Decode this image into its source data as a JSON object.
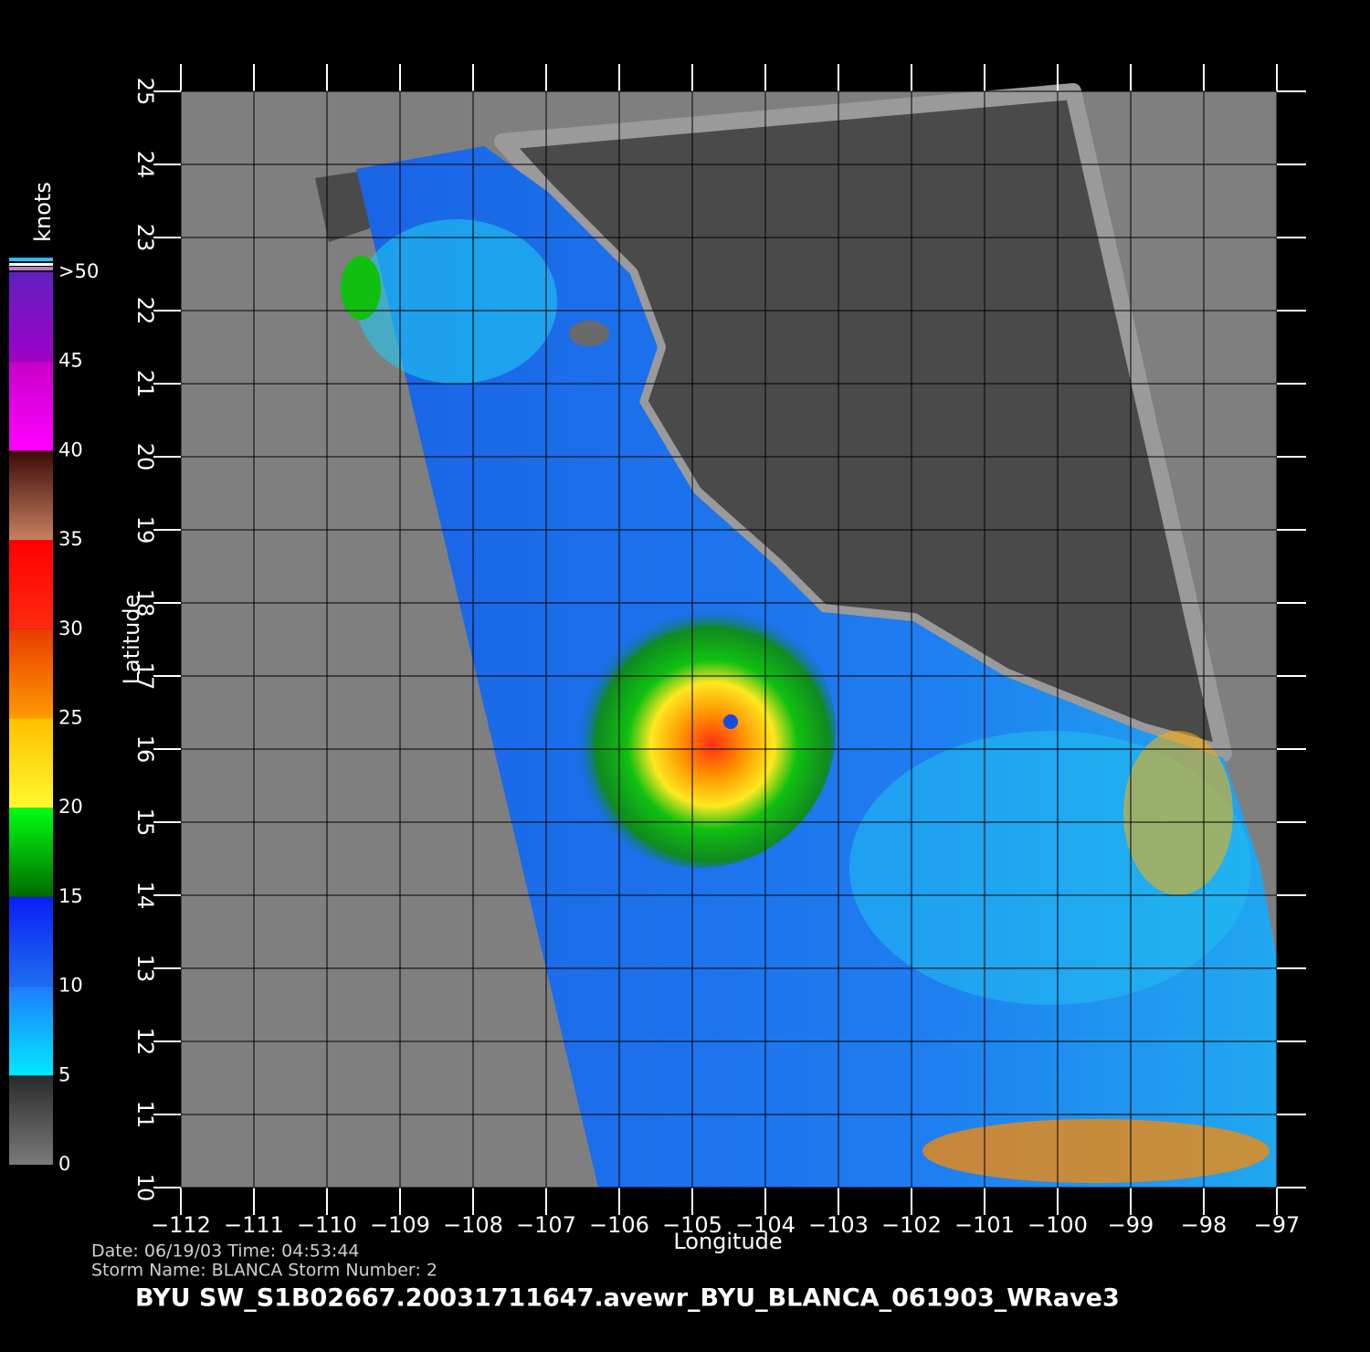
{
  "chart_data": {
    "type": "wind-map",
    "title": "BYU  SW_S1B02667.20031711647.avewr_BYU_BLANCA_061903_WRave3",
    "info": [
      "Date: 06/19/03   Time: 04:53:44",
      "Storm  Name: BLANCA   Storm  Number: 2"
    ],
    "x_label": "Longitude",
    "y_label": "Latitude",
    "xlim": [
      -112,
      -97
    ],
    "ylim": [
      10,
      25
    ],
    "xticks": [
      {
        "value": -112,
        "label": "−112"
      },
      {
        "value": -111,
        "label": "−111"
      },
      {
        "value": -110,
        "label": "−110"
      },
      {
        "value": -109,
        "label": "−109"
      },
      {
        "value": -108,
        "label": "−108"
      },
      {
        "value": -107,
        "label": "−107"
      },
      {
        "value": -106,
        "label": "−106"
      },
      {
        "value": -105,
        "label": "−105"
      },
      {
        "value": -104,
        "label": "−104"
      },
      {
        "value": -103,
        "label": "−103"
      },
      {
        "value": -102,
        "label": "−102"
      },
      {
        "value": -101,
        "label": "−101"
      },
      {
        "value": -100,
        "label": "−100"
      },
      {
        "value": -99,
        "label": "−99"
      },
      {
        "value": -98,
        "label": "−98"
      },
      {
        "value": -97,
        "label": "−97"
      }
    ],
    "yticks": [
      10,
      11,
      12,
      13,
      14,
      15,
      16,
      17,
      18,
      19,
      20,
      21,
      22,
      23,
      24,
      25
    ],
    "grid": true,
    "colorbar": {
      "label": "knots",
      "lim": [
        0,
        50
      ],
      "ticks": [
        0,
        5,
        10,
        15,
        20,
        25,
        30,
        35,
        40,
        45,
        {
          "value": 50,
          "label": ">50"
        }
      ],
      "colors": [
        [
          "#7a7a7a",
          "#2a2a2a"
        ],
        [
          "#00eaff",
          "#1e7cff"
        ],
        [
          "#1e6ef0",
          "#0a1ef5"
        ],
        [
          "#006a00",
          "#00ff10"
        ],
        [
          "#fff830",
          "#ffc000"
        ],
        [
          "#ff9a00",
          "#e83c00"
        ],
        [
          "#ff2a10",
          "#ff0000"
        ],
        [
          "#c88060",
          "#3a0a08"
        ],
        [
          "#ff00ff",
          "#c800c8"
        ],
        [
          "#a000c8",
          "#6020c0"
        ]
      ]
    }
  }
}
